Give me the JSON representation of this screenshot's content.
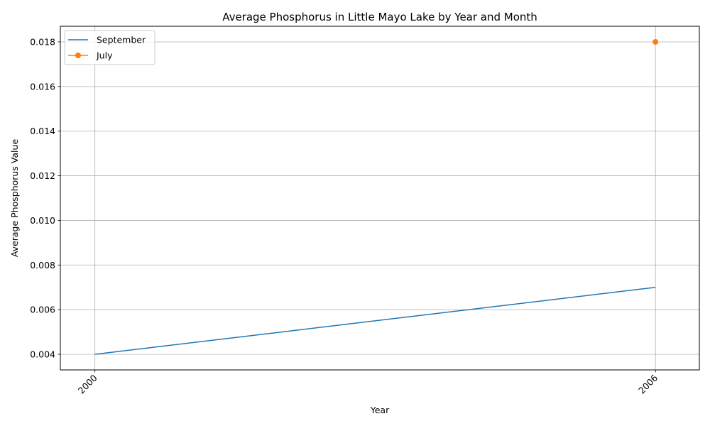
{
  "chart_data": {
    "type": "line",
    "title": "Average Phosphorus in Little Mayo Lake by Year and Month",
    "xlabel": "Year",
    "ylabel": "Average Phosphorus Value",
    "xlim": [
      1999.63,
      2006.47
    ],
    "ylim": [
      0.0033,
      0.0187
    ],
    "xticks": [
      2000,
      2006
    ],
    "xtick_labels": [
      "2000",
      "2006"
    ],
    "yticks": [
      0.004,
      0.006,
      0.008,
      0.01,
      0.012,
      0.014,
      0.016,
      0.018
    ],
    "ytick_labels": [
      "0.004",
      "0.006",
      "0.008",
      "0.010",
      "0.012",
      "0.014",
      "0.016",
      "0.018"
    ],
    "grid": true,
    "legend_position": "top-left",
    "series": [
      {
        "name": "September",
        "color": "#1f77b4",
        "marker": "none",
        "x": [
          2000,
          2006
        ],
        "y": [
          0.004,
          0.007
        ]
      },
      {
        "name": "July",
        "color": "#ff7f0e",
        "marker": "circle",
        "x": [
          2006
        ],
        "y": [
          0.018
        ]
      }
    ]
  }
}
